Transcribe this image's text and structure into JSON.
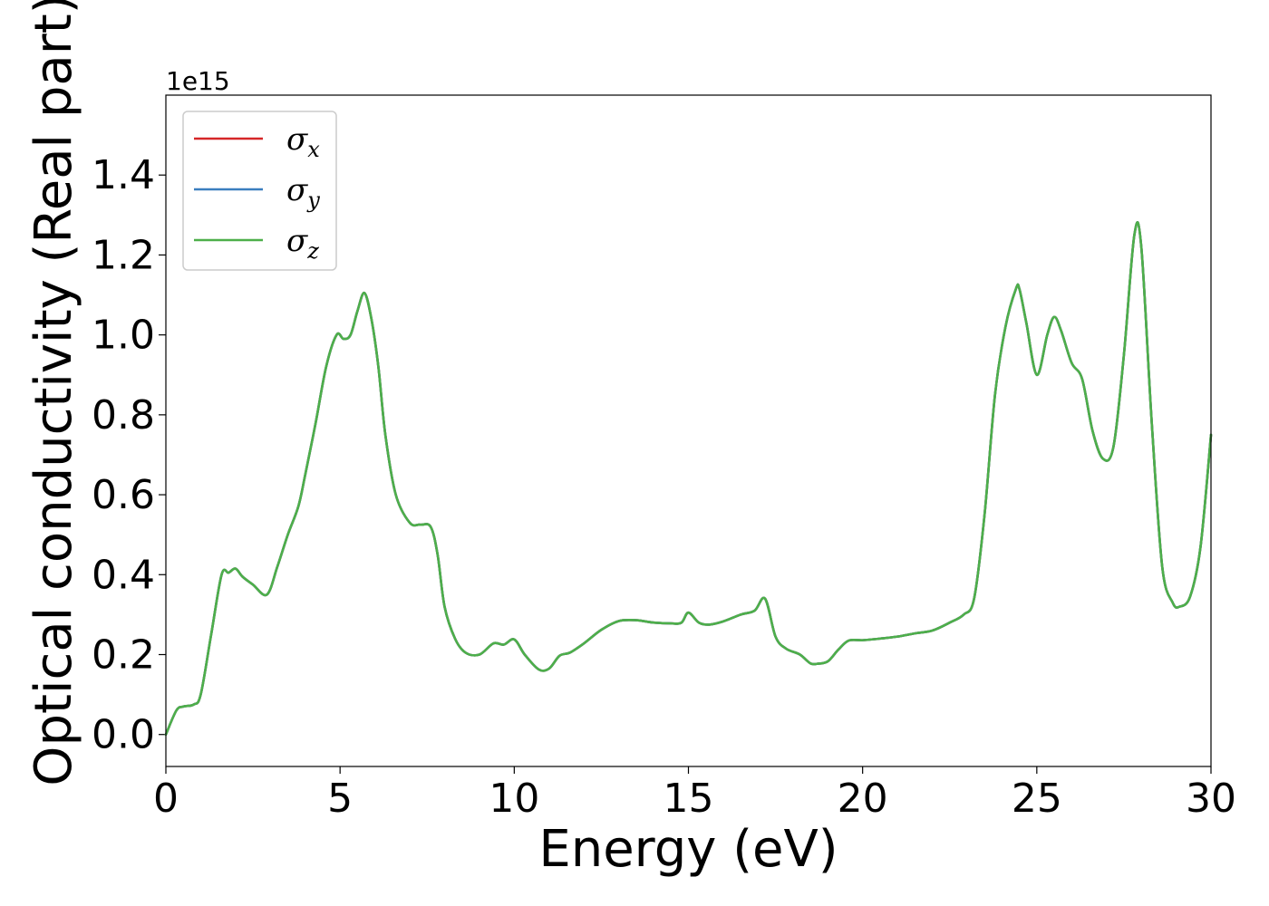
{
  "chart_data": {
    "type": "line",
    "title": "",
    "xlabel": "Energy (eV)",
    "ylabel": "Optical conductivity (Real part)",
    "y_offset_label": "1e15",
    "xlim": [
      0,
      30
    ],
    "ylim": [
      -0.08,
      1.6
    ],
    "x_ticks": [
      0,
      5,
      10,
      15,
      20,
      25,
      30
    ],
    "x_tick_labels": [
      "0",
      "5",
      "10",
      "15",
      "20",
      "25",
      "30"
    ],
    "y_ticks": [
      0.0,
      0.2,
      0.4,
      0.6,
      0.8,
      1.0,
      1.2,
      1.4
    ],
    "y_tick_labels": [
      "0.0",
      "0.2",
      "0.4",
      "0.6",
      "0.8",
      "1.0",
      "1.2",
      "1.4"
    ],
    "grid": false,
    "legend_position": "top-left",
    "series": [
      {
        "name": "σx",
        "symbol": "σ",
        "subscript": "x",
        "color": "#d62728",
        "x": [
          0,
          0.3,
          0.5,
          0.8,
          1.0,
          1.3,
          1.6,
          1.8,
          2.0,
          2.2,
          2.5,
          2.9,
          3.2,
          3.5,
          3.8,
          4.0,
          4.3,
          4.6,
          4.9,
          5.1,
          5.3,
          5.5,
          5.7,
          5.9,
          6.1,
          6.3,
          6.6,
          7.0,
          7.3,
          7.6,
          7.8,
          8.0,
          8.3,
          8.6,
          9.0,
          9.4,
          9.7,
          10.0,
          10.3,
          10.7,
          11.0,
          11.3,
          11.6,
          12.0,
          12.5,
          13.0,
          13.5,
          14.0,
          14.5,
          14.8,
          15.0,
          15.3,
          15.6,
          16.0,
          16.5,
          16.9,
          17.2,
          17.5,
          17.8,
          18.2,
          18.5,
          18.7,
          19.0,
          19.3,
          19.6,
          20.0,
          20.5,
          21.0,
          21.5,
          22.0,
          22.5,
          22.9,
          23.2,
          23.5,
          23.8,
          24.1,
          24.4,
          24.5,
          24.7,
          25.0,
          25.3,
          25.5,
          25.7,
          26.0,
          26.3,
          26.6,
          26.9,
          27.2,
          27.5,
          27.8,
          28.0,
          28.3,
          28.6,
          28.9,
          29.1,
          29.4,
          29.7,
          30.0
        ],
        "y": [
          0.0,
          0.06,
          0.07,
          0.075,
          0.1,
          0.25,
          0.4,
          0.405,
          0.415,
          0.395,
          0.375,
          0.35,
          0.42,
          0.5,
          0.57,
          0.65,
          0.78,
          0.92,
          1.0,
          0.99,
          1.0,
          1.06,
          1.105,
          1.04,
          0.92,
          0.75,
          0.6,
          0.53,
          0.525,
          0.52,
          0.45,
          0.32,
          0.24,
          0.205,
          0.2,
          0.228,
          0.225,
          0.238,
          0.2,
          0.163,
          0.165,
          0.197,
          0.205,
          0.228,
          0.262,
          0.284,
          0.286,
          0.28,
          0.278,
          0.28,
          0.305,
          0.28,
          0.275,
          0.283,
          0.3,
          0.31,
          0.34,
          0.245,
          0.215,
          0.2,
          0.178,
          0.177,
          0.183,
          0.212,
          0.235,
          0.236,
          0.24,
          0.245,
          0.253,
          0.26,
          0.28,
          0.3,
          0.34,
          0.55,
          0.85,
          1.02,
          1.115,
          1.115,
          1.03,
          0.9,
          1.0,
          1.045,
          1.01,
          0.93,
          0.89,
          0.76,
          0.69,
          0.72,
          0.95,
          1.25,
          1.22,
          0.78,
          0.42,
          0.33,
          0.32,
          0.345,
          0.47,
          0.75
        ]
      },
      {
        "name": "σy",
        "symbol": "σ",
        "subscript": "y",
        "color": "#3a7ebf",
        "x": [
          0,
          0.3,
          0.5,
          0.8,
          1.0,
          1.3,
          1.6,
          1.8,
          2.0,
          2.2,
          2.5,
          2.9,
          3.2,
          3.5,
          3.8,
          4.0,
          4.3,
          4.6,
          4.9,
          5.1,
          5.3,
          5.5,
          5.7,
          5.9,
          6.1,
          6.3,
          6.6,
          7.0,
          7.3,
          7.6,
          7.8,
          8.0,
          8.3,
          8.6,
          9.0,
          9.4,
          9.7,
          10.0,
          10.3,
          10.7,
          11.0,
          11.3,
          11.6,
          12.0,
          12.5,
          13.0,
          13.5,
          14.0,
          14.5,
          14.8,
          15.0,
          15.3,
          15.6,
          16.0,
          16.5,
          16.9,
          17.2,
          17.5,
          17.8,
          18.2,
          18.5,
          18.7,
          19.0,
          19.3,
          19.6,
          20.0,
          20.5,
          21.0,
          21.5,
          22.0,
          22.5,
          22.9,
          23.2,
          23.5,
          23.8,
          24.1,
          24.4,
          24.5,
          24.7,
          25.0,
          25.3,
          25.5,
          25.7,
          26.0,
          26.3,
          26.6,
          26.9,
          27.2,
          27.5,
          27.8,
          28.0,
          28.3,
          28.6,
          28.9,
          29.1,
          29.4,
          29.7,
          30.0
        ],
        "y": [
          0.0,
          0.06,
          0.07,
          0.075,
          0.1,
          0.25,
          0.4,
          0.405,
          0.415,
          0.395,
          0.375,
          0.35,
          0.42,
          0.5,
          0.57,
          0.65,
          0.78,
          0.92,
          1.0,
          0.99,
          1.0,
          1.06,
          1.105,
          1.04,
          0.92,
          0.75,
          0.6,
          0.53,
          0.525,
          0.52,
          0.45,
          0.32,
          0.24,
          0.205,
          0.2,
          0.228,
          0.225,
          0.238,
          0.2,
          0.163,
          0.165,
          0.197,
          0.205,
          0.228,
          0.262,
          0.284,
          0.286,
          0.28,
          0.278,
          0.28,
          0.305,
          0.28,
          0.275,
          0.283,
          0.3,
          0.31,
          0.34,
          0.245,
          0.215,
          0.2,
          0.178,
          0.177,
          0.183,
          0.212,
          0.235,
          0.236,
          0.24,
          0.245,
          0.253,
          0.26,
          0.28,
          0.3,
          0.34,
          0.55,
          0.85,
          1.02,
          1.115,
          1.115,
          1.03,
          0.9,
          1.0,
          1.045,
          1.01,
          0.93,
          0.89,
          0.76,
          0.69,
          0.72,
          0.95,
          1.25,
          1.22,
          0.78,
          0.42,
          0.33,
          0.32,
          0.345,
          0.47,
          0.75
        ]
      },
      {
        "name": "σz",
        "symbol": "σ",
        "subscript": "z",
        "color": "#4daf4a",
        "x": [
          0,
          0.3,
          0.5,
          0.8,
          1.0,
          1.3,
          1.6,
          1.8,
          2.0,
          2.2,
          2.5,
          2.9,
          3.2,
          3.5,
          3.8,
          4.0,
          4.3,
          4.6,
          4.9,
          5.1,
          5.3,
          5.5,
          5.7,
          5.9,
          6.1,
          6.3,
          6.6,
          7.0,
          7.3,
          7.6,
          7.8,
          8.0,
          8.3,
          8.6,
          9.0,
          9.4,
          9.7,
          10.0,
          10.3,
          10.7,
          11.0,
          11.3,
          11.6,
          12.0,
          12.5,
          13.0,
          13.5,
          14.0,
          14.5,
          14.8,
          15.0,
          15.3,
          15.6,
          16.0,
          16.5,
          16.9,
          17.2,
          17.5,
          17.8,
          18.2,
          18.5,
          18.7,
          19.0,
          19.3,
          19.6,
          20.0,
          20.5,
          21.0,
          21.5,
          22.0,
          22.5,
          22.9,
          23.2,
          23.5,
          23.8,
          24.1,
          24.4,
          24.5,
          24.7,
          25.0,
          25.3,
          25.5,
          25.7,
          26.0,
          26.3,
          26.6,
          26.9,
          27.2,
          27.5,
          27.8,
          28.0,
          28.3,
          28.6,
          28.9,
          29.1,
          29.4,
          29.7,
          30.0
        ],
        "y": [
          0.0,
          0.06,
          0.07,
          0.075,
          0.1,
          0.25,
          0.4,
          0.405,
          0.415,
          0.395,
          0.375,
          0.35,
          0.42,
          0.5,
          0.57,
          0.65,
          0.78,
          0.92,
          1.0,
          0.99,
          1.0,
          1.06,
          1.105,
          1.04,
          0.92,
          0.75,
          0.6,
          0.53,
          0.525,
          0.52,
          0.45,
          0.32,
          0.24,
          0.205,
          0.2,
          0.228,
          0.225,
          0.238,
          0.2,
          0.163,
          0.165,
          0.197,
          0.205,
          0.228,
          0.262,
          0.284,
          0.286,
          0.28,
          0.278,
          0.28,
          0.305,
          0.28,
          0.275,
          0.283,
          0.3,
          0.31,
          0.34,
          0.245,
          0.215,
          0.2,
          0.178,
          0.177,
          0.183,
          0.212,
          0.235,
          0.236,
          0.24,
          0.245,
          0.253,
          0.26,
          0.28,
          0.3,
          0.34,
          0.55,
          0.85,
          1.02,
          1.115,
          1.115,
          1.03,
          0.9,
          1.0,
          1.045,
          1.01,
          0.93,
          0.89,
          0.76,
          0.69,
          0.72,
          0.95,
          1.25,
          1.22,
          0.78,
          0.42,
          0.33,
          0.32,
          0.345,
          0.47,
          0.75
        ]
      }
    ]
  }
}
